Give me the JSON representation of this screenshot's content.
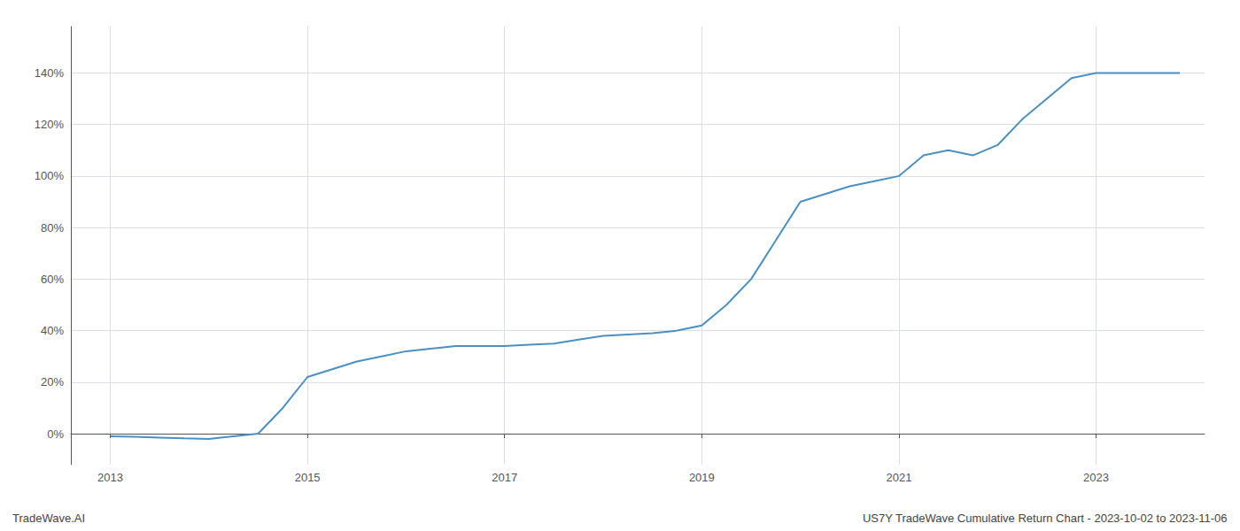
{
  "chart_data": {
    "type": "line",
    "annotations": [
      "TradeWave.AI",
      "US7Y TradeWave Cumulative Return Chart - 2023-10-02 to 2023-11-06"
    ],
    "x": [
      2013.0,
      2013.25,
      2013.5,
      2013.75,
      2014.0,
      2014.25,
      2014.5,
      2014.75,
      2015.0,
      2015.25,
      2015.5,
      2015.75,
      2016.0,
      2016.25,
      2016.5,
      2016.75,
      2017.0,
      2017.25,
      2017.5,
      2017.75,
      2018.0,
      2018.25,
      2018.5,
      2018.75,
      2019.0,
      2019.25,
      2019.5,
      2019.75,
      2020.0,
      2020.25,
      2020.5,
      2020.75,
      2021.0,
      2021.25,
      2021.5,
      2021.75,
      2022.0,
      2022.25,
      2022.5,
      2022.75,
      2023.0,
      2023.25,
      2023.5,
      2023.75,
      2023.85
    ],
    "values": [
      -1.0,
      -1.2,
      -1.5,
      -1.8,
      -2.0,
      -1.0,
      0.0,
      10.0,
      22.0,
      25.0,
      28.0,
      30.0,
      32.0,
      33.0,
      34.0,
      34.0,
      34.0,
      34.5,
      35.0,
      36.5,
      38.0,
      38.5,
      39.0,
      40.0,
      42.0,
      50.0,
      60.0,
      75.0,
      90.0,
      93.0,
      96.0,
      98.0,
      100.0,
      108.0,
      110.0,
      108.0,
      112.0,
      122.0,
      130.0,
      138.0,
      140.0,
      140.0,
      140.0,
      140.0,
      140.0
    ],
    "color": "#4a90c4",
    "xlim": [
      2012.6,
      2024.1
    ],
    "xticks": [
      2013,
      2015,
      2017,
      2019,
      2021,
      2023
    ],
    "ylim": [
      -12,
      158
    ],
    "yticks": [
      {
        "value": 0,
        "label": "0%"
      },
      {
        "value": 20,
        "label": "20%"
      },
      {
        "value": 40,
        "label": "40%"
      },
      {
        "value": 60,
        "label": "60%"
      },
      {
        "value": 80,
        "label": "80%"
      },
      {
        "value": 100,
        "label": "100%"
      },
      {
        "value": 120,
        "label": "120%"
      },
      {
        "value": 140,
        "label": "140%"
      }
    ],
    "grid": true
  }
}
